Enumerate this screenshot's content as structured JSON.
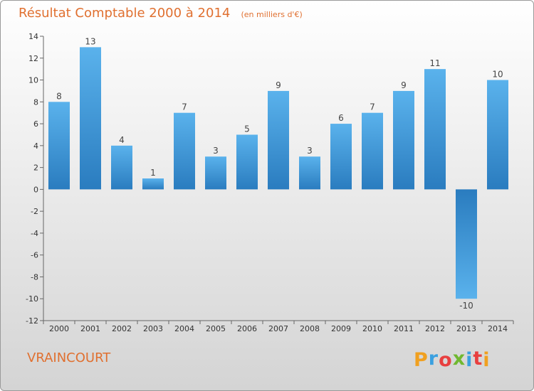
{
  "chart_data": {
    "type": "bar",
    "title": "Résultat Comptable 2000 à 2014",
    "subtitle": "(en milliers d'€)",
    "categories": [
      "2000",
      "2001",
      "2002",
      "2003",
      "2004",
      "2005",
      "2006",
      "2007",
      "2008",
      "2009",
      "2010",
      "2011",
      "2012",
      "2013",
      "2014"
    ],
    "values": [
      8,
      13,
      4,
      1,
      7,
      3,
      5,
      9,
      3,
      6,
      7,
      9,
      11,
      -10,
      10
    ],
    "data_labels": [
      "8",
      "13",
      "4",
      "1",
      "7",
      "3",
      "5",
      "9",
      "3",
      "6",
      "7",
      "9",
      "11",
      "-10",
      "10"
    ],
    "ylim": [
      -12,
      14
    ],
    "yticks": [
      14,
      12,
      10,
      8,
      6,
      4,
      2,
      0,
      -2,
      -4,
      -6,
      -8,
      -10,
      -12
    ],
    "ytick_labels": [
      "14",
      "12",
      "10",
      "8",
      "6",
      "4",
      "2",
      "0",
      "-2",
      "-4",
      "-6",
      "-8",
      "-10",
      "-12"
    ],
    "xlabel": "",
    "ylabel": "",
    "grid": false,
    "bar_color": "#4aa3e0"
  },
  "commune": "VRAINCOURT",
  "brand": {
    "letters": [
      "P",
      "r",
      "o",
      "x",
      "i",
      "t",
      "i"
    ],
    "colors": [
      "#f0a020",
      "#3aa0e0",
      "#e84040",
      "#70b830",
      "#3aa0e0",
      "#e84040",
      "#f0a020"
    ]
  }
}
